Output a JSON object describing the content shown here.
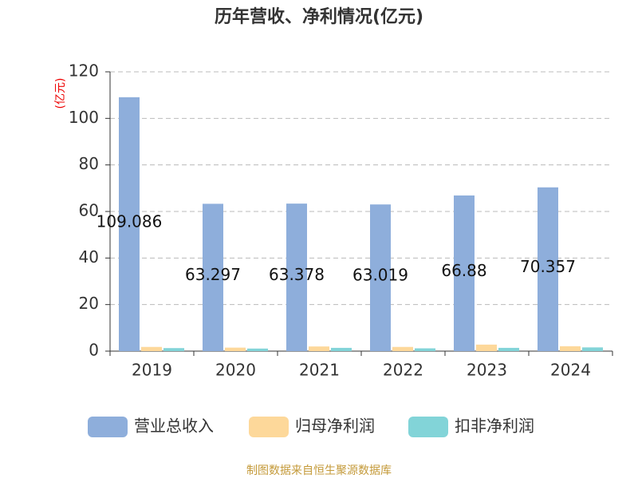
{
  "chart_data": {
    "type": "bar",
    "title": "历年营收、净利情况(亿元)",
    "y_label": "(亿元)",
    "categories": [
      "2019",
      "2020",
      "2021",
      "2022",
      "2023",
      "2024"
    ],
    "series": [
      {
        "name": "营业总收入",
        "color": "#8eaedb",
        "values": [
          109.086,
          63.297,
          63.378,
          63.019,
          66.88,
          70.357
        ],
        "show_labels": true
      },
      {
        "name": "归母净利润",
        "color": "#fdd89a",
        "values": [
          1.8,
          1.5,
          2.0,
          1.8,
          2.8,
          2.1
        ]
      },
      {
        "name": "扣非净利润",
        "color": "#82d4d8",
        "values": [
          1.3,
          1.1,
          1.4,
          1.2,
          1.4,
          1.6
        ]
      }
    ],
    "ylim": [
      0,
      120
    ],
    "yticks": [
      0,
      20,
      40,
      60,
      80,
      100,
      120
    ],
    "grid": true,
    "source": "制图数据来自恒生聚源数据库"
  }
}
